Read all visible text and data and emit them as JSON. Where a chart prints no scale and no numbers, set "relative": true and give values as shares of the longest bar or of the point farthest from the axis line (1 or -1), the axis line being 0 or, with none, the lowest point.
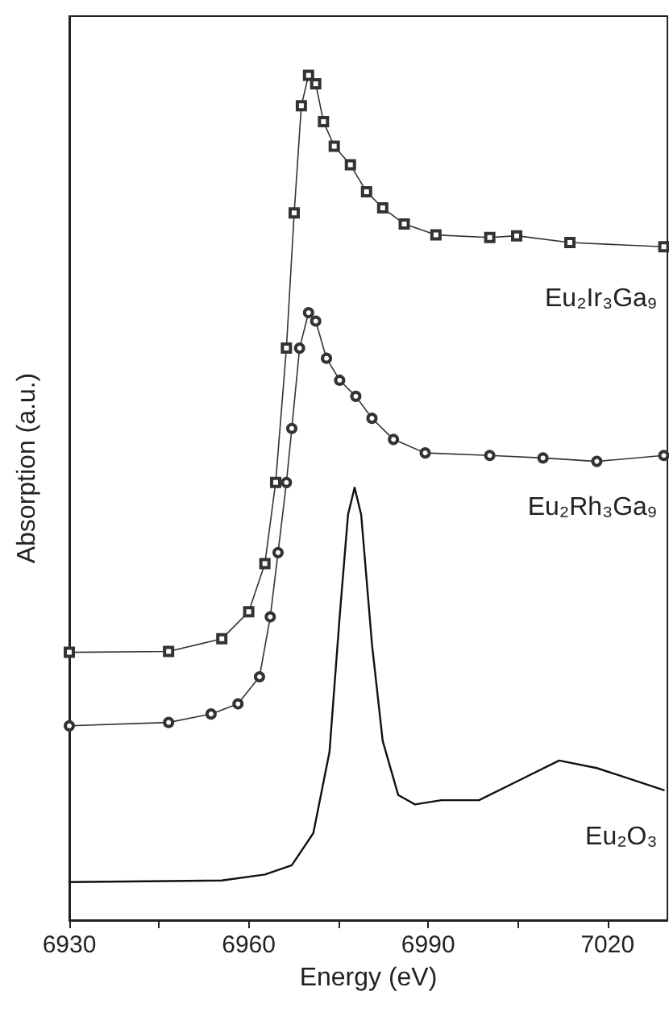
{
  "chart_data": {
    "type": "line",
    "relative": true,
    "xlabel": "Energy (eV)",
    "ylabel": "Absorption (a.u.)",
    "xlim": [
      6930,
      7030
    ],
    "xticks": [
      6930,
      {
        "value": 6945,
        "label": null
      },
      6960,
      {
        "value": 6975,
        "label": null
      },
      6990,
      {
        "value": 7005,
        "label": null
      },
      7020
    ],
    "grid": false,
    "legend": false,
    "tick_labels": "x",
    "series": [
      {
        "name": "Eu₂Ir₃Ga₉",
        "color": "#333333",
        "marker": "square",
        "x": [
          6930,
          6946.6,
          6955.5,
          6960,
          6962.7,
          6964.5,
          6966.3,
          6967.6,
          6968.8,
          6970,
          6971.2,
          6972.5,
          6974.3,
          6977,
          6979.7,
          6982.4,
          6986,
          6991.3,
          7000.3,
          7004.8,
          7013.7,
          7029.4
        ],
        "values": [
          0.317,
          0.318,
          0.333,
          0.365,
          0.422,
          0.518,
          0.677,
          0.837,
          0.964,
          1.0,
          0.99,
          0.945,
          0.916,
          0.894,
          0.862,
          0.843,
          0.824,
          0.811,
          0.808,
          0.81,
          0.802,
          0.797
        ]
      },
      {
        "name": "Eu₂Rh₃Ga₉",
        "color": "#333333",
        "marker": "circle",
        "x": [
          6930,
          6946.6,
          6953.7,
          6958.2,
          6961.8,
          6963.6,
          6964.9,
          6966.3,
          6967.2,
          6968.5,
          6970,
          6971.2,
          6973,
          6975.2,
          6977.9,
          6980.6,
          6984.2,
          6989.5,
          7000.3,
          7009.2,
          7018.2,
          7029.4
        ],
        "values": [
          0.23,
          0.234,
          0.244,
          0.256,
          0.288,
          0.359,
          0.435,
          0.518,
          0.582,
          0.677,
          0.719,
          0.709,
          0.665,
          0.639,
          0.62,
          0.594,
          0.569,
          0.553,
          0.55,
          0.547,
          0.543,
          0.55
        ]
      },
      {
        "name": "Eu₂O₃",
        "color": "#111111",
        "marker": "none",
        "x": [
          6930,
          6955.5,
          6962.7,
          6967.2,
          6970.8,
          6973.5,
          6975.2,
          6976.6,
          6977.7,
          6978.8,
          6980.6,
          6982.4,
          6985,
          6987.8,
          6992.2,
          6998.5,
          7004.8,
          7011.9,
          7018.2,
          7029.4
        ],
        "values": [
          0.045,
          0.047,
          0.054,
          0.065,
          0.103,
          0.199,
          0.359,
          0.48,
          0.512,
          0.48,
          0.327,
          0.212,
          0.148,
          0.137,
          0.142,
          0.142,
          0.164,
          0.189,
          0.18,
          0.154
        ]
      }
    ]
  }
}
